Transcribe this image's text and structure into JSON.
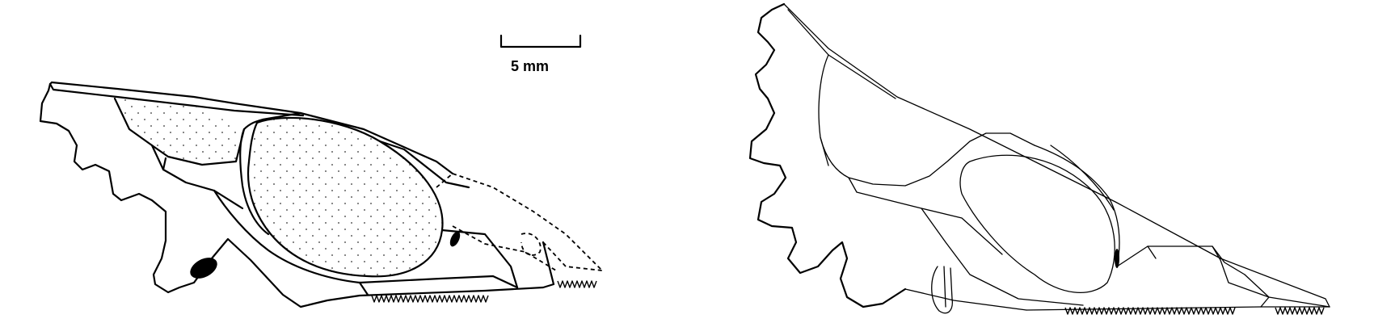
{
  "scale_bar": {
    "label": "5 mm"
  },
  "figure": {
    "panels": [
      {
        "view": "reconstruction",
        "style": "stippled"
      },
      {
        "view": "specimen",
        "style": "outline"
      }
    ]
  }
}
